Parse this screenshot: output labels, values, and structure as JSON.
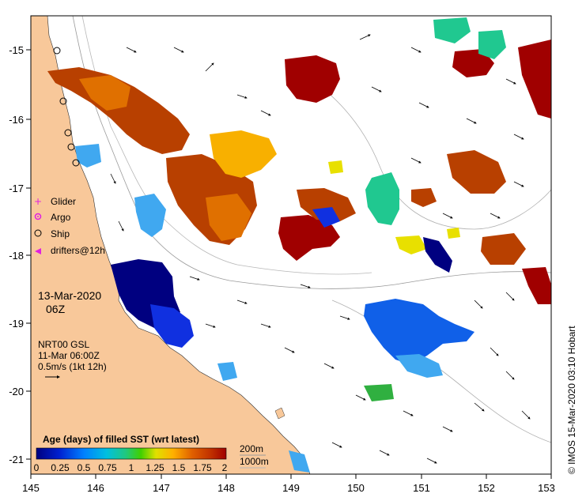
{
  "map": {
    "date": "13-Mar-2020",
    "time": "06Z",
    "product": "NRT00 GSL",
    "product_time": "11-Mar 06:00Z",
    "vector_scale": "0.5m/s (1kt 12h)",
    "credit": "© IMOS 15-Mar-2020 03:10 Hobart",
    "lon_ticks": [
      "145",
      "146",
      "147",
      "148",
      "149",
      "150",
      "151",
      "152",
      "153"
    ],
    "lat_ticks": [
      "-15",
      "-16",
      "-17",
      "-18",
      "-19",
      "-20",
      "-21"
    ],
    "legend": [
      {
        "label": "Glider",
        "color": "#e020e0",
        "icon": "plus-icon"
      },
      {
        "label": "Argo",
        "color": "#e020e0",
        "icon": "circle-dot-icon"
      },
      {
        "label": "Ship",
        "color": "#000000",
        "icon": "circle-icon"
      },
      {
        "label": "drifters@12h",
        "color": "#e020e0",
        "icon": "arrow-left-icon"
      }
    ],
    "colorbar": {
      "title": "Age (days) of filled SST (wrt latest)",
      "ticks": [
        "0",
        "0.25",
        "0.5",
        "0.75",
        "1",
        "1.25",
        "1.5",
        "1.75",
        "2"
      ],
      "depth_200": "200m",
      "depth_1000": "1000m"
    },
    "colors": {
      "land": "#f8c89a",
      "age_0": "#000080",
      "age_2": "#a00000"
    }
  }
}
